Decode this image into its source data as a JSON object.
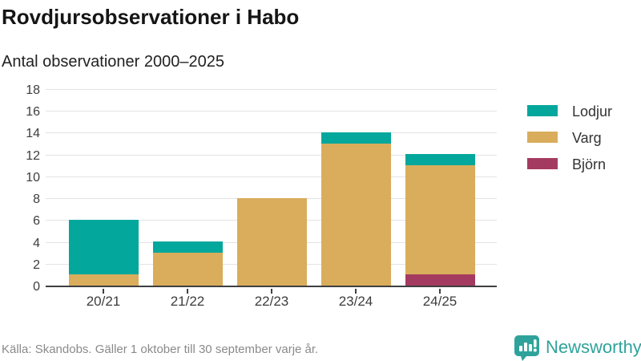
{
  "header": {
    "title": "Rovdjursobservationer i Habo",
    "subtitle": "Antal observationer 2000–2025"
  },
  "chart_data": {
    "type": "bar",
    "stacked": true,
    "title": "Rovdjursobservationer i Habo",
    "subtitle": "Antal observationer 2000–2025",
    "categories": [
      "20/21",
      "21/22",
      "22/23",
      "23/24",
      "24/25"
    ],
    "series": [
      {
        "name": "Lodjur",
        "color": "#04a79c",
        "values": [
          5,
          1,
          0,
          1,
          1
        ]
      },
      {
        "name": "Varg",
        "color": "#d9ad5c",
        "values": [
          1,
          3,
          8,
          13,
          10
        ]
      },
      {
        "name": "Björn",
        "color": "#a53a60",
        "values": [
          0,
          0,
          0,
          0,
          1
        ]
      }
    ],
    "totals": [
      6,
      4,
      8,
      14,
      12
    ],
    "xlabel": "",
    "ylabel": "",
    "ylim": [
      0,
      18
    ],
    "ytick_step": 2,
    "grid": true,
    "legend_position": "right"
  },
  "footer": {
    "source": "Källa: Skandobs. Gäller 1 oktober till 30 september varje år.",
    "brand": "Newsworthy"
  },
  "colors": {
    "lodjur": "#04a79c",
    "varg": "#d9ad5c",
    "bjorn": "#a53a60",
    "brand_teal": "#2fa39b",
    "grid": "#e3e3e3",
    "axis": "#3f3f3f",
    "title_text": "#151515",
    "muted_text": "#8a8a8a"
  }
}
